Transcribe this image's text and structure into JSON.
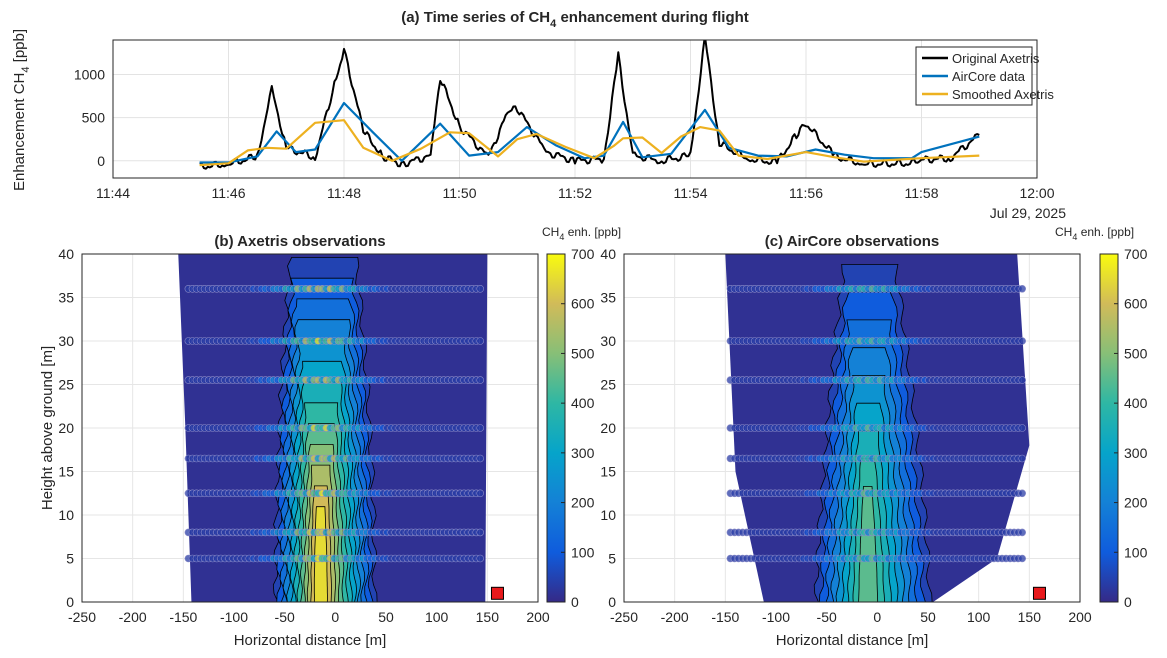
{
  "chart_data": [
    {
      "type": "line",
      "title_main": "(a) Time series of CH",
      "title_sub": "4",
      "title_tail": " enhancement during flight",
      "ylabel_main": "Enhancement CH",
      "ylabel_sub": "4",
      "ylabel_tail": " [ppb]",
      "date_label": "Jul 29, 2025",
      "x_ticks": [
        "11:44",
        "11:46",
        "11:48",
        "11:50",
        "11:52",
        "11:54",
        "11:56",
        "11:58",
        "12:00"
      ],
      "xlim": [
        "11:44",
        "12:00"
      ],
      "ylim": [
        -200,
        1400
      ],
      "y_ticks": [
        0,
        500,
        1000
      ],
      "grid": true,
      "legend_position": "top-right",
      "series": [
        {
          "name": "Original Axetris",
          "color": "#000000",
          "x": [
            "11:45:30",
            "11:46:00",
            "11:46:30",
            "11:46:45",
            "11:47:00",
            "11:47:30",
            "11:47:50",
            "11:48:00",
            "11:48:20",
            "11:48:40",
            "11:49:00",
            "11:49:30",
            "11:49:40",
            "11:50:00",
            "11:50:30",
            "11:50:50",
            "11:51:00",
            "11:51:30",
            "11:52:00",
            "11:52:30",
            "11:52:45",
            "11:53:00",
            "11:53:30",
            "11:54:00",
            "11:54:15",
            "11:54:30",
            "11:55:00",
            "11:55:30",
            "11:55:50",
            "11:56:00",
            "11:56:30",
            "11:57:00",
            "11:57:50",
            "11:58:00",
            "11:58:30",
            "11:59:00"
          ],
          "values": [
            -70,
            -40,
            50,
            830,
            150,
            40,
            880,
            1290,
            350,
            50,
            -40,
            60,
            960,
            400,
            40,
            560,
            610,
            100,
            0,
            20,
            1220,
            60,
            0,
            60,
            1430,
            200,
            20,
            -20,
            300,
            430,
            50,
            -40,
            -30,
            10,
            30,
            300
          ]
        },
        {
          "name": "AirCore data",
          "color": "#0072BD",
          "x": [
            "11:45:30",
            "11:46:00",
            "11:46:30",
            "11:46:50",
            "11:47:10",
            "11:47:30",
            "11:48:00",
            "11:48:30",
            "11:49:00",
            "11:49:40",
            "11:50:10",
            "11:50:40",
            "11:51:10",
            "11:51:40",
            "11:52:10",
            "11:52:30",
            "11:52:50",
            "11:53:10",
            "11:53:40",
            "11:54:15",
            "11:54:40",
            "11:55:10",
            "11:55:40",
            "11:56:10",
            "11:56:40",
            "11:57:10",
            "11:57:50",
            "11:58:00",
            "11:59:00"
          ],
          "values": [
            -20,
            -20,
            50,
            340,
            100,
            130,
            670,
            330,
            0,
            430,
            60,
            100,
            390,
            180,
            30,
            60,
            450,
            40,
            80,
            590,
            150,
            60,
            50,
            130,
            70,
            30,
            30,
            100,
            280
          ]
        },
        {
          "name": "Smoothed Axetris",
          "color": "#EDB120",
          "x": [
            "11:45:30",
            "11:46:00",
            "11:46:20",
            "11:46:40",
            "11:47:00",
            "11:47:30",
            "11:48:00",
            "11:48:20",
            "11:48:50",
            "11:49:20",
            "11:49:50",
            "11:50:10",
            "11:50:40",
            "11:51:00",
            "11:51:20",
            "11:51:50",
            "11:52:20",
            "11:52:40",
            "11:52:50",
            "11:53:10",
            "11:53:30",
            "11:53:50",
            "11:54:10",
            "11:54:30",
            "11:54:50",
            "11:55:20",
            "11:56:00",
            "11:56:30",
            "11:57:00",
            "11:58:00",
            "11:59:00"
          ],
          "values": [
            -50,
            -30,
            120,
            150,
            140,
            440,
            470,
            150,
            0,
            140,
            330,
            320,
            50,
            250,
            310,
            160,
            30,
            170,
            260,
            270,
            90,
            280,
            390,
            350,
            60,
            20,
            100,
            40,
            -10,
            30,
            60
          ]
        }
      ]
    },
    {
      "type": "heatmap",
      "title": "(b) Axetris observations",
      "xlabel": "Horizontal distance [m]",
      "ylabel": "Height above ground [m]",
      "xlim": [
        -250,
        200
      ],
      "ylim": [
        0,
        40
      ],
      "x_ticks": [
        -250,
        -200,
        -150,
        -100,
        -50,
        0,
        50,
        100,
        150,
        200
      ],
      "y_ticks": [
        0,
        5,
        10,
        15,
        20,
        25,
        30,
        35,
        40
      ],
      "colorbar_label_main": "CH",
      "colorbar_label_sub": "4",
      "colorbar_label_tail": " enh. [ppb]",
      "colorbar_range": [
        0,
        700
      ],
      "colorbar_ticks": [
        0,
        100,
        200,
        300,
        400,
        500,
        600,
        700
      ],
      "plume_center_x": -15,
      "plume_peak_ppb": 670,
      "flight_altitudes": [
        5,
        8,
        12.5,
        16.5,
        20,
        25.5,
        30,
        36
      ],
      "source_marker": {
        "x": 160,
        "y": 1,
        "color": "#E8191C"
      },
      "grid": true
    },
    {
      "type": "heatmap",
      "title": "(c) AirCore observations",
      "xlabel": "Horizontal distance [m]",
      "xlim": [
        -250,
        200
      ],
      "ylim": [
        0,
        40
      ],
      "x_ticks": [
        -250,
        -200,
        -150,
        -100,
        -50,
        0,
        50,
        100,
        150,
        200
      ],
      "y_ticks": [
        0,
        5,
        10,
        15,
        20,
        25,
        30,
        35,
        40
      ],
      "colorbar_label_main": "CH",
      "colorbar_label_sub": "4",
      "colorbar_label_tail": " enh. [ppb]",
      "colorbar_range": [
        0,
        700
      ],
      "colorbar_ticks": [
        0,
        100,
        200,
        300,
        400,
        500,
        600,
        700
      ],
      "plume_center_x": -10,
      "plume_peak_ppb": 470,
      "flight_altitudes": [
        5,
        8,
        12.5,
        16.5,
        20,
        25.5,
        30,
        36
      ],
      "source_marker": {
        "x": 160,
        "y": 1,
        "color": "#E8191C"
      },
      "grid": true
    }
  ]
}
